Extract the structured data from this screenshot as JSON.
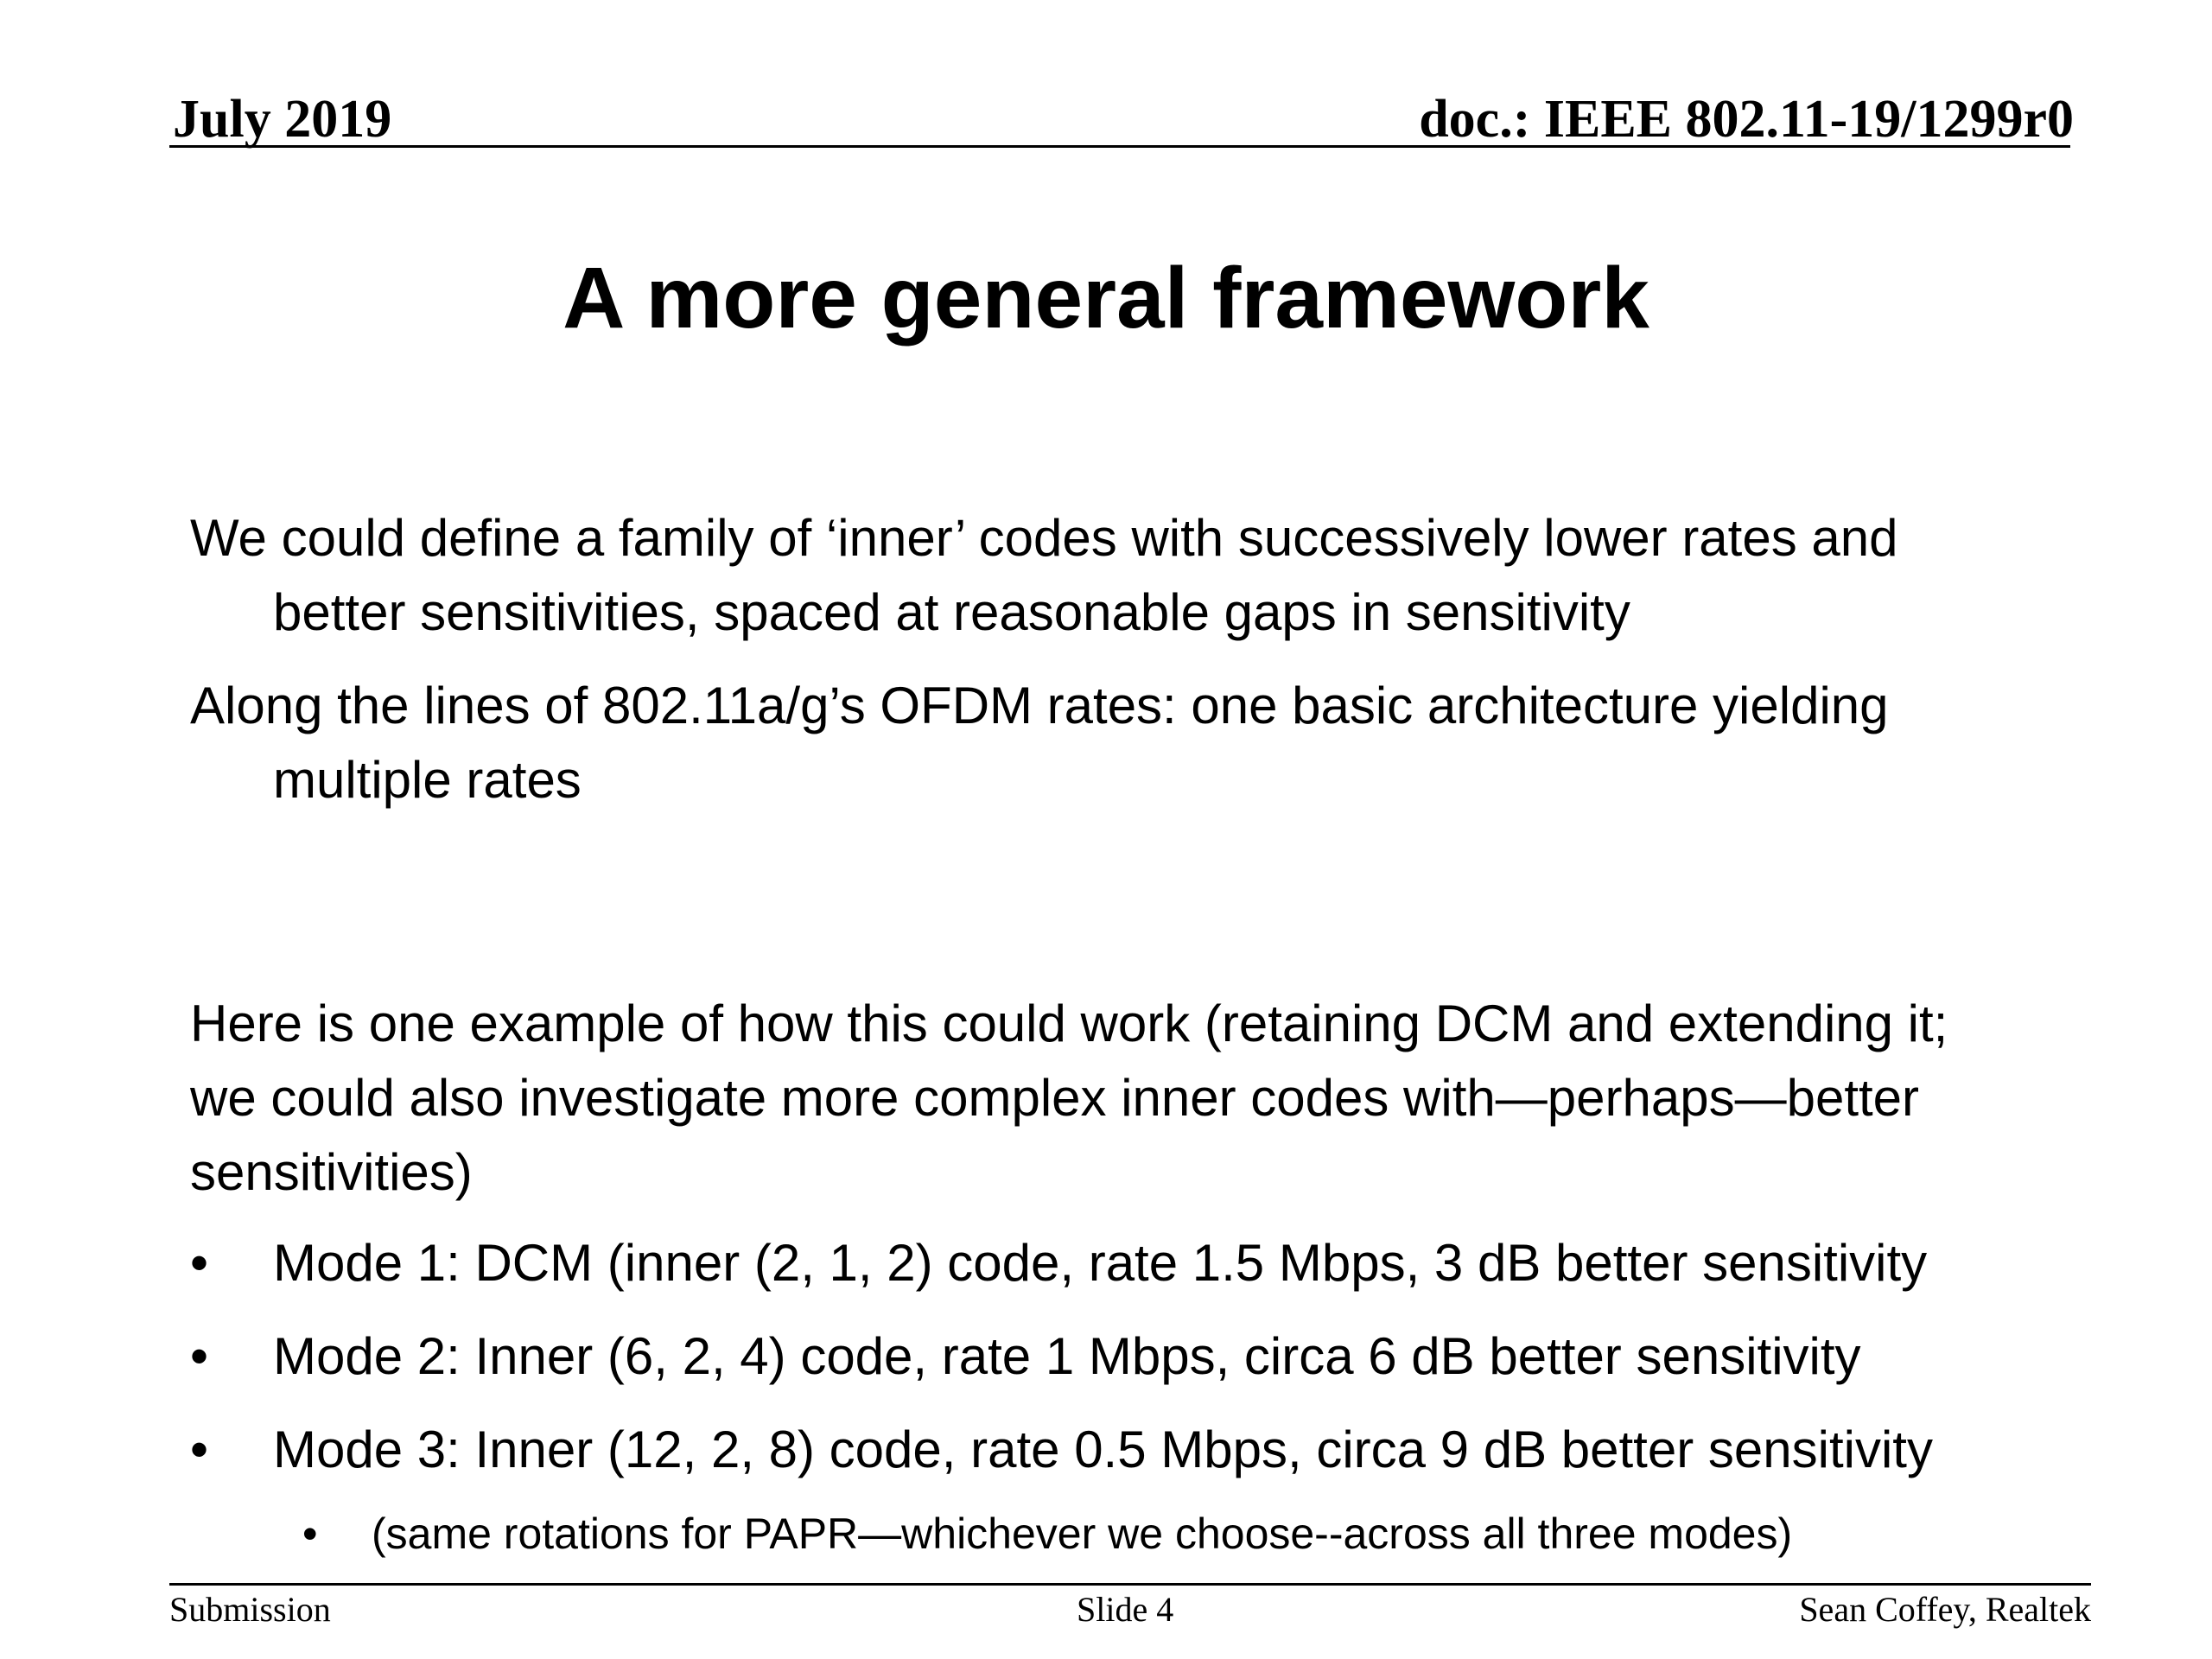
{
  "header": {
    "date": "July 2019",
    "doc_id": "doc.: IEEE 802.11-19/1299r0"
  },
  "title": "A more general framework",
  "paragraphs": [
    {
      "line1": "We could define a family of ‘inner’ codes with successively lower rates and",
      "line2": "better sensitivities, spaced at reasonable gaps in sensitivity"
    },
    {
      "line1": "Along the lines of 802.11a/g’s OFDM rates: one basic architecture yielding",
      "line2": "multiple rates"
    }
  ],
  "example": {
    "line1": "Here is one example of how this could work (retaining DCM and extending it;",
    "line2": "we could also investigate more complex inner codes with—perhaps—better",
    "line3": "sensitivities)"
  },
  "bullets": [
    "Mode 1: DCM (inner (2, 1, 2) code, rate 1.5 Mbps, 3 dB better sensitivity",
    "Mode 2: Inner (6, 2, 4) code, rate 1 Mbps, circa 6 dB better sensitivity",
    "Mode 3: Inner (12, 2, 8) code, rate 0.5 Mbps, circa 9 dB better sensitivity"
  ],
  "bullet_symbol": "•",
  "sub_bullets": [
    "(same rotations for PAPR—whichever we choose--across all three modes)"
  ],
  "footer": {
    "left": "Submission",
    "center": "Slide 4",
    "right": "Sean Coffey, Realtek"
  }
}
